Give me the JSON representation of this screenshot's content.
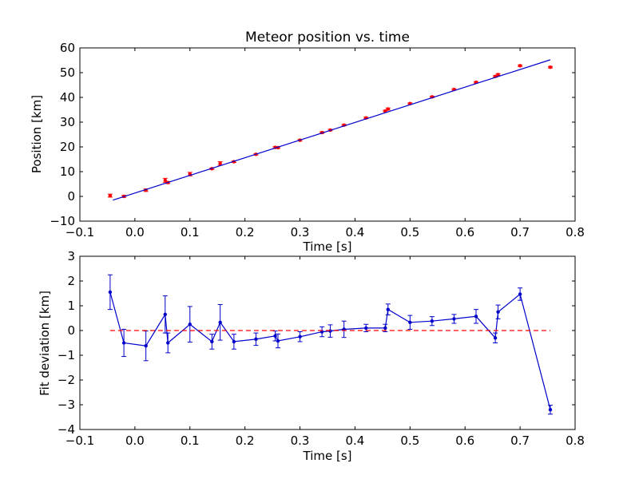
{
  "chart_data": [
    {
      "type": "scatter",
      "title": "Meteor position vs. time",
      "xlabel": "Time [s]",
      "ylabel": "Position [km]",
      "xlim": [
        -0.1,
        0.8
      ],
      "ylim": [
        -10,
        60
      ],
      "xticks": [
        "−0.1",
        "0.0",
        "0.1",
        "0.2",
        "0.3",
        "0.4",
        "0.5",
        "0.6",
        "0.7",
        "0.8"
      ],
      "yticks": [
        "−10",
        "0",
        "10",
        "20",
        "30",
        "40",
        "50",
        "60"
      ],
      "grid": false,
      "legend": "none",
      "series": [
        {
          "style": "points-with-errorbars",
          "color": "#ff0000",
          "points": [
            {
              "x": -0.045,
              "y": 0.3,
              "err": 0.6
            },
            {
              "x": -0.02,
              "y": 0.0,
              "err": 0.4
            },
            {
              "x": 0.02,
              "y": 2.5,
              "err": 0.5
            },
            {
              "x": 0.055,
              "y": 6.5,
              "err": 0.8
            },
            {
              "x": 0.06,
              "y": 5.6,
              "err": 0.4
            },
            {
              "x": 0.1,
              "y": 9.0,
              "err": 0.7
            },
            {
              "x": 0.14,
              "y": 11.2,
              "err": 0.3
            },
            {
              "x": 0.155,
              "y": 13.3,
              "err": 0.7
            },
            {
              "x": 0.18,
              "y": 14.0,
              "err": 0.3
            },
            {
              "x": 0.22,
              "y": 17.0,
              "err": 0.3
            },
            {
              "x": 0.255,
              "y": 19.8,
              "err": 0.3
            },
            {
              "x": 0.26,
              "y": 19.7,
              "err": 0.3
            },
            {
              "x": 0.3,
              "y": 22.7,
              "err": 0.3
            },
            {
              "x": 0.34,
              "y": 25.8,
              "err": 0.3
            },
            {
              "x": 0.355,
              "y": 26.8,
              "err": 0.3
            },
            {
              "x": 0.38,
              "y": 28.8,
              "err": 0.3
            },
            {
              "x": 0.42,
              "y": 31.7,
              "err": 0.3
            },
            {
              "x": 0.455,
              "y": 34.5,
              "err": 0.3
            },
            {
              "x": 0.46,
              "y": 35.3,
              "err": 0.4
            },
            {
              "x": 0.5,
              "y": 37.5,
              "err": 0.3
            },
            {
              "x": 0.54,
              "y": 40.2,
              "err": 0.3
            },
            {
              "x": 0.58,
              "y": 43.2,
              "err": 0.3
            },
            {
              "x": 0.62,
              "y": 46.1,
              "err": 0.3
            },
            {
              "x": 0.655,
              "y": 48.5,
              "err": 0.3
            },
            {
              "x": 0.66,
              "y": 49.2,
              "err": 0.4
            },
            {
              "x": 0.7,
              "y": 52.8,
              "err": 0.3
            },
            {
              "x": 0.755,
              "y": 52.2,
              "err": 0.3
            }
          ]
        },
        {
          "style": "line",
          "color": "#0000cc",
          "x": [
            -0.04,
            0.755
          ],
          "y": [
            -1.5,
            55.2
          ]
        }
      ]
    },
    {
      "type": "line",
      "xlabel": "Time [s]",
      "ylabel": "Fit deviation [km]",
      "xlim": [
        -0.1,
        0.8
      ],
      "ylim": [
        -4,
        3
      ],
      "xticks": [
        "−0.1",
        "0.0",
        "0.1",
        "0.2",
        "0.3",
        "0.4",
        "0.5",
        "0.6",
        "0.7",
        "0.8"
      ],
      "yticks": [
        "−4",
        "−3",
        "−2",
        "−1",
        "0",
        "1",
        "2",
        "3"
      ],
      "grid": false,
      "legend": "none",
      "series": [
        {
          "style": "line-markers-errorbars",
          "color": "#0000cc",
          "points": [
            {
              "x": -0.045,
              "y": 1.55,
              "err": 0.7
            },
            {
              "x": -0.02,
              "y": -0.5,
              "err": 0.55
            },
            {
              "x": 0.02,
              "y": -0.62,
              "err": 0.6
            },
            {
              "x": 0.055,
              "y": 0.65,
              "err": 0.75
            },
            {
              "x": 0.06,
              "y": -0.5,
              "err": 0.4
            },
            {
              "x": 0.1,
              "y": 0.25,
              "err": 0.72
            },
            {
              "x": 0.14,
              "y": -0.45,
              "err": 0.3
            },
            {
              "x": 0.155,
              "y": 0.33,
              "err": 0.72
            },
            {
              "x": 0.18,
              "y": -0.45,
              "err": 0.3
            },
            {
              "x": 0.22,
              "y": -0.35,
              "err": 0.25
            },
            {
              "x": 0.255,
              "y": -0.22,
              "err": 0.2
            },
            {
              "x": 0.26,
              "y": -0.42,
              "err": 0.28
            },
            {
              "x": 0.3,
              "y": -0.25,
              "err": 0.2
            },
            {
              "x": 0.34,
              "y": -0.05,
              "err": 0.2
            },
            {
              "x": 0.355,
              "y": -0.02,
              "err": 0.25
            },
            {
              "x": 0.38,
              "y": 0.05,
              "err": 0.33
            },
            {
              "x": 0.42,
              "y": 0.1,
              "err": 0.15
            },
            {
              "x": 0.455,
              "y": 0.1,
              "err": 0.15
            },
            {
              "x": 0.46,
              "y": 0.85,
              "err": 0.22
            },
            {
              "x": 0.5,
              "y": 0.33,
              "err": 0.28
            },
            {
              "x": 0.54,
              "y": 0.38,
              "err": 0.18
            },
            {
              "x": 0.58,
              "y": 0.47,
              "err": 0.18
            },
            {
              "x": 0.62,
              "y": 0.57,
              "err": 0.28
            },
            {
              "x": 0.655,
              "y": -0.3,
              "err": 0.2
            },
            {
              "x": 0.66,
              "y": 0.75,
              "err": 0.28
            },
            {
              "x": 0.7,
              "y": 1.47,
              "err": 0.25
            },
            {
              "x": 0.755,
              "y": -3.2,
              "err": 0.18
            }
          ]
        },
        {
          "style": "dashed-line",
          "color": "#ff0000",
          "x": [
            -0.045,
            0.755
          ],
          "y": [
            0,
            0
          ]
        }
      ]
    }
  ]
}
